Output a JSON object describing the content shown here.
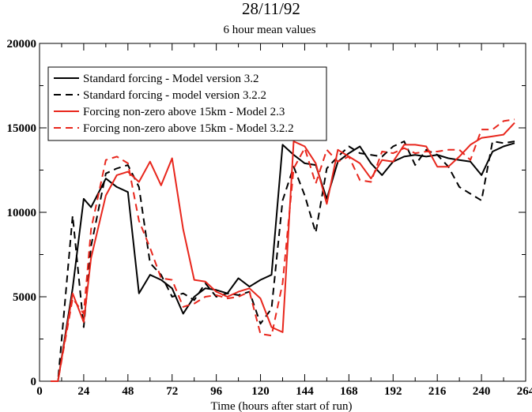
{
  "chart_data": {
    "type": "line",
    "title": "28/11/92",
    "subtitle": "6 hour mean values",
    "xlabel": "Time (hours after start of run)",
    "ylabel": "",
    "xlim": [
      0,
      264
    ],
    "ylim": [
      0,
      20000
    ],
    "xticks": [
      0,
      24,
      48,
      72,
      96,
      120,
      144,
      168,
      192,
      216,
      240,
      264
    ],
    "yticks": [
      0,
      5000,
      10000,
      15000,
      20000
    ],
    "grid": false,
    "legend_position": "top-left",
    "series": [
      {
        "name": "Standard forcing - Model version 3.2",
        "color": "#000000",
        "dash": "solid",
        "x": [
          6,
          10,
          18,
          24,
          28,
          36,
          42,
          48,
          54,
          60,
          66,
          72,
          78,
          84,
          90,
          96,
          102,
          108,
          114,
          120,
          126,
          132,
          138,
          144,
          150,
          156,
          162,
          168,
          174,
          180,
          186,
          192,
          198,
          204,
          210,
          216,
          222,
          228,
          234,
          240,
          246,
          252,
          258
        ],
        "values": [
          0,
          0,
          5500,
          10800,
          10300,
          12000,
          11500,
          11200,
          5200,
          6300,
          6000,
          5500,
          4000,
          5000,
          5500,
          5400,
          5200,
          6100,
          5600,
          6000,
          6300,
          14000,
          13400,
          12900,
          12800,
          10800,
          13000,
          13500,
          13900,
          12900,
          12200,
          13000,
          13300,
          13400,
          13300,
          13400,
          13200,
          13100,
          13000,
          12200,
          13600,
          13900,
          14100
        ]
      },
      {
        "name": "Standard forcing - model version 3.2.2",
        "color": "#000000",
        "dash": "dashed",
        "x": [
          6,
          10,
          18,
          24,
          28,
          36,
          42,
          48,
          54,
          60,
          66,
          72,
          78,
          84,
          90,
          96,
          102,
          108,
          114,
          120,
          126,
          132,
          138,
          144,
          150,
          156,
          162,
          168,
          174,
          180,
          186,
          192,
          198,
          204,
          210,
          216,
          222,
          228,
          234,
          240,
          246,
          252,
          258
        ],
        "values": [
          0,
          0,
          9800,
          3200,
          8000,
          12300,
          12600,
          12800,
          11500,
          7000,
          6300,
          5000,
          5200,
          4800,
          5800,
          5000,
          5200,
          5100,
          5300,
          3400,
          4300,
          10700,
          12700,
          11000,
          8800,
          12600,
          13300,
          13900,
          13500,
          13400,
          13300,
          13900,
          14200,
          12800,
          13700,
          13400,
          12700,
          11500,
          11100,
          10700,
          14200,
          14100,
          14200
        ]
      },
      {
        "name": "Forcing non-zero above 15km - Model 2.3",
        "color": "#e8261c",
        "dash": "solid",
        "x": [
          6,
          10,
          18,
          24,
          28,
          36,
          42,
          48,
          54,
          60,
          66,
          72,
          78,
          84,
          90,
          96,
          102,
          108,
          114,
          120,
          126,
          132,
          138,
          144,
          150,
          156,
          162,
          168,
          174,
          180,
          186,
          192,
          198,
          204,
          210,
          216,
          222,
          228,
          234,
          240,
          246,
          252,
          258
        ],
        "values": [
          0,
          0,
          5200,
          3500,
          7300,
          11000,
          12200,
          12400,
          11800,
          13000,
          11600,
          13200,
          9000,
          6000,
          5900,
          5300,
          5000,
          5300,
          5500,
          4900,
          3200,
          2900,
          14200,
          13900,
          12900,
          10500,
          13700,
          13300,
          12900,
          12000,
          13100,
          13000,
          14000,
          14000,
          13900,
          12700,
          12700,
          13300,
          14000,
          14400,
          14500,
          14600,
          15300
        ]
      },
      {
        "name": "Forcing non-zero above 15km - Model 3.2.2",
        "color": "#e8261c",
        "dash": "dashed",
        "x": [
          6,
          10,
          18,
          24,
          28,
          36,
          42,
          48,
          54,
          60,
          66,
          72,
          78,
          84,
          90,
          96,
          102,
          108,
          114,
          120,
          126,
          132,
          138,
          144,
          150,
          156,
          162,
          168,
          174,
          180,
          186,
          192,
          198,
          204,
          210,
          216,
          222,
          228,
          234,
          240,
          246,
          252,
          258
        ],
        "values": [
          0,
          0,
          4900,
          4000,
          9000,
          13100,
          13300,
          12900,
          9500,
          7900,
          6100,
          6000,
          4400,
          4600,
          5000,
          5100,
          4900,
          5000,
          5300,
          2800,
          2700,
          5800,
          12600,
          13800,
          11700,
          13700,
          13000,
          13300,
          11900,
          11800,
          13600,
          13500,
          13800,
          13500,
          13600,
          13600,
          13700,
          13700,
          13100,
          14900,
          14900,
          15400,
          15500
        ]
      }
    ]
  }
}
